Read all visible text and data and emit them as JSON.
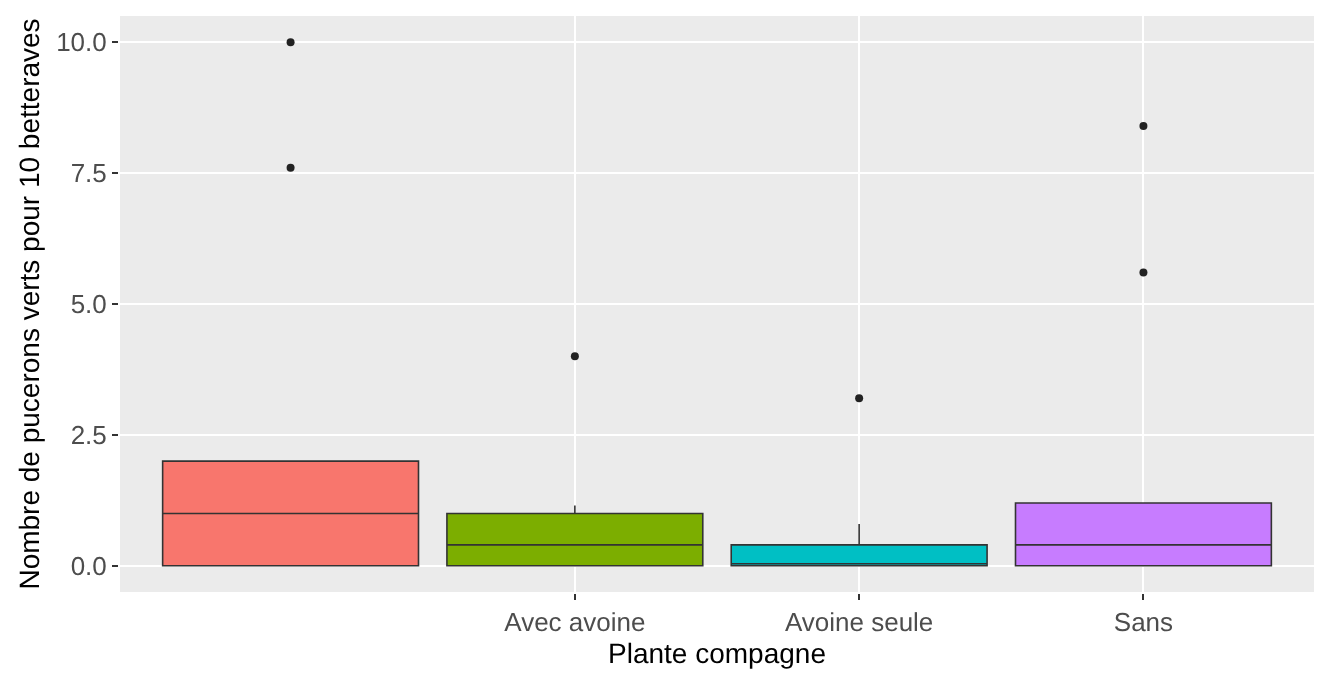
{
  "chart_data": {
    "type": "box",
    "xlabel": "Plante compagne",
    "ylabel": "Nombre de pucerons verts pour 10 betteraves",
    "categories": [
      null,
      "Avec avoine",
      "Avoine seule",
      "Sans"
    ],
    "colors": [
      "#f8766d",
      "#7cae00",
      "#00bfc4",
      "#c77cff"
    ],
    "boxes": [
      {
        "q1": 0,
        "median": 1,
        "q3": 2,
        "high": 2,
        "outliers": [
          7.6,
          10
        ]
      },
      {
        "q1": 0,
        "median": 0.4,
        "q3": 1,
        "high": 1.15,
        "outliers": [
          4
        ]
      },
      {
        "q1": 0,
        "median": 0,
        "q3": 0.4,
        "high": 0.8,
        "outliers": [
          3.2
        ]
      },
      {
        "q1": 0,
        "median": 0.4,
        "q3": 1.2,
        "high": 1.2,
        "outliers": [
          5.6,
          8.4
        ]
      }
    ],
    "ylim": [
      -0.5,
      10.5
    ],
    "yticks": [
      {
        "value": 0,
        "label": "0.0"
      },
      {
        "value": 2.5,
        "label": "2.5"
      },
      {
        "value": 5,
        "label": "5.0"
      },
      {
        "value": 7.5,
        "label": "7.5"
      },
      {
        "value": 10,
        "label": "10.0"
      }
    ],
    "grid": true
  }
}
